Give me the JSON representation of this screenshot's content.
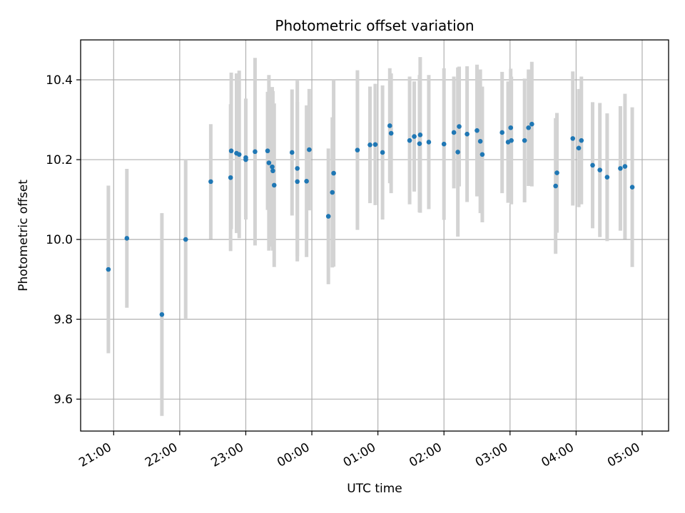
{
  "chart_data": {
    "type": "scatter",
    "title": "Photometric offset variation",
    "xlabel": "UTC time",
    "ylabel": "Photometric offset",
    "x_unit": "hours since 00:00 UTC",
    "xlim": [
      -3.5,
      5.4
    ],
    "ylim": [
      9.52,
      10.5
    ],
    "x_ticks": [
      {
        "value": -3,
        "label": "21:00"
      },
      {
        "value": -2,
        "label": "22:00"
      },
      {
        "value": -1,
        "label": "23:00"
      },
      {
        "value": 0,
        "label": "00:00"
      },
      {
        "value": 1,
        "label": "01:00"
      },
      {
        "value": 2,
        "label": "02:00"
      },
      {
        "value": 3,
        "label": "03:00"
      },
      {
        "value": 4,
        "label": "04:00"
      },
      {
        "value": 5,
        "label": "05:00"
      }
    ],
    "y_ticks": [
      {
        "value": 9.6,
        "label": "9.6"
      },
      {
        "value": 9.8,
        "label": "9.8"
      },
      {
        "value": 10.0,
        "label": "10.0"
      },
      {
        "value": 10.2,
        "label": "10.2"
      },
      {
        "value": 10.4,
        "label": "10.4"
      }
    ],
    "grid": true,
    "point_color": "#1f77b4",
    "errorbar_color": "#d3d3d3",
    "points": [
      {
        "x": -3.08,
        "y": 9.925,
        "err": 0.21
      },
      {
        "x": -2.8,
        "y": 10.003,
        "err": 0.174
      },
      {
        "x": -2.27,
        "y": 9.812,
        "err": 0.254
      },
      {
        "x": -1.91,
        "y": 10.0,
        "err": 0.2
      },
      {
        "x": -1.53,
        "y": 10.145,
        "err": 0.144
      },
      {
        "x": -1.23,
        "y": 10.155,
        "err": 0.184
      },
      {
        "x": -1.22,
        "y": 10.222,
        "err": 0.196
      },
      {
        "x": -1.14,
        "y": 10.216,
        "err": 0.2
      },
      {
        "x": -1.1,
        "y": 10.213,
        "err": 0.21
      },
      {
        "x": -1.0,
        "y": 10.2,
        "err": 0.15
      },
      {
        "x": -1.0,
        "y": 10.205,
        "err": 0.148
      },
      {
        "x": -0.86,
        "y": 10.22,
        "err": 0.235
      },
      {
        "x": -0.67,
        "y": 10.222,
        "err": 0.148
      },
      {
        "x": -0.65,
        "y": 10.192,
        "err": 0.22
      },
      {
        "x": -0.6,
        "y": 10.182,
        "err": 0.2
      },
      {
        "x": -0.59,
        "y": 10.172,
        "err": 0.2
      },
      {
        "x": -0.57,
        "y": 10.136,
        "err": 0.205
      },
      {
        "x": -0.3,
        "y": 10.218,
        "err": 0.158
      },
      {
        "x": -0.22,
        "y": 10.178,
        "err": 0.22
      },
      {
        "x": -0.22,
        "y": 10.145,
        "err": 0.2
      },
      {
        "x": -0.08,
        "y": 10.146,
        "err": 0.19
      },
      {
        "x": -0.04,
        "y": 10.225,
        "err": 0.152
      },
      {
        "x": 0.25,
        "y": 10.058,
        "err": 0.17
      },
      {
        "x": 0.31,
        "y": 10.118,
        "err": 0.188
      },
      {
        "x": 0.33,
        "y": 10.166,
        "err": 0.234
      },
      {
        "x": 0.69,
        "y": 10.224,
        "err": 0.2
      },
      {
        "x": 0.88,
        "y": 10.237,
        "err": 0.146
      },
      {
        "x": 0.96,
        "y": 10.238,
        "err": 0.152
      },
      {
        "x": 1.07,
        "y": 10.218,
        "err": 0.168
      },
      {
        "x": 1.18,
        "y": 10.285,
        "err": 0.144
      },
      {
        "x": 1.2,
        "y": 10.266,
        "err": 0.15
      },
      {
        "x": 1.48,
        "y": 10.248,
        "err": 0.16
      },
      {
        "x": 1.55,
        "y": 10.258,
        "err": 0.138
      },
      {
        "x": 1.63,
        "y": 10.24,
        "err": 0.172
      },
      {
        "x": 1.64,
        "y": 10.262,
        "err": 0.195
      },
      {
        "x": 1.77,
        "y": 10.244,
        "err": 0.168
      },
      {
        "x": 2.0,
        "y": 10.239,
        "err": 0.19
      },
      {
        "x": 2.15,
        "y": 10.268,
        "err": 0.14
      },
      {
        "x": 2.21,
        "y": 10.219,
        "err": 0.212
      },
      {
        "x": 2.23,
        "y": 10.283,
        "err": 0.15
      },
      {
        "x": 2.35,
        "y": 10.264,
        "err": 0.17
      },
      {
        "x": 2.5,
        "y": 10.273,
        "err": 0.165
      },
      {
        "x": 2.55,
        "y": 10.246,
        "err": 0.18
      },
      {
        "x": 2.58,
        "y": 10.213,
        "err": 0.17
      },
      {
        "x": 2.88,
        "y": 10.268,
        "err": 0.152
      },
      {
        "x": 2.97,
        "y": 10.244,
        "err": 0.152
      },
      {
        "x": 3.01,
        "y": 10.28,
        "err": 0.148
      },
      {
        "x": 3.02,
        "y": 10.248,
        "err": 0.16
      },
      {
        "x": 3.22,
        "y": 10.248,
        "err": 0.155
      },
      {
        "x": 3.28,
        "y": 10.28,
        "err": 0.146
      },
      {
        "x": 3.33,
        "y": 10.289,
        "err": 0.156
      },
      {
        "x": 3.69,
        "y": 10.134,
        "err": 0.17
      },
      {
        "x": 3.71,
        "y": 10.167,
        "err": 0.15
      },
      {
        "x": 3.95,
        "y": 10.253,
        "err": 0.168
      },
      {
        "x": 4.04,
        "y": 10.229,
        "err": 0.148
      },
      {
        "x": 4.08,
        "y": 10.248,
        "err": 0.16
      },
      {
        "x": 4.25,
        "y": 10.186,
        "err": 0.158
      },
      {
        "x": 4.36,
        "y": 10.174,
        "err": 0.168
      },
      {
        "x": 4.47,
        "y": 10.156,
        "err": 0.16
      },
      {
        "x": 4.67,
        "y": 10.178,
        "err": 0.156
      },
      {
        "x": 4.74,
        "y": 10.183,
        "err": 0.182
      },
      {
        "x": 4.85,
        "y": 10.131,
        "err": 0.2
      }
    ]
  }
}
